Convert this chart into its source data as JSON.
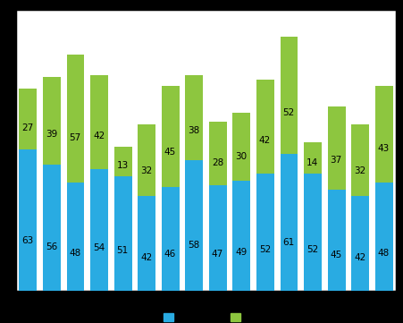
{
  "blue_values": [
    63,
    56,
    48,
    54,
    51,
    42,
    46,
    58,
    47,
    49,
    52,
    61,
    52,
    45,
    42,
    48
  ],
  "green_values": [
    27,
    39,
    57,
    42,
    13,
    32,
    45,
    38,
    28,
    30,
    42,
    52,
    14,
    37,
    32,
    43
  ],
  "blue_color": "#29abe2",
  "green_color": "#8dc63f",
  "background_color": "#ffffff",
  "plot_bg_color": "#ffffff",
  "outer_bg_color": "#000000",
  "grid_color": "#000000",
  "bar_width": 0.75,
  "ylim": [
    0,
    125
  ],
  "grid_ticks": [
    20,
    40,
    60,
    80,
    100
  ],
  "text_fontsize": 7.5,
  "label_color": "#000000",
  "legend_blue_label": "",
  "legend_green_label": ""
}
